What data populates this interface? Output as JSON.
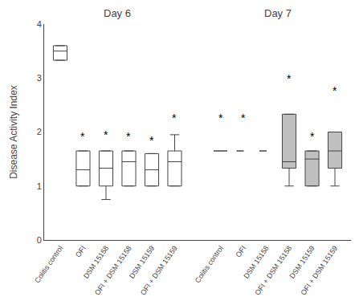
{
  "chart_data": {
    "type": "box",
    "ylabel": "Disease Activity Index",
    "ylim": [
      0,
      4
    ],
    "yticks": [
      0,
      1,
      2,
      3,
      4
    ],
    "grid": false,
    "color": "#444444",
    "group_titles": [
      "Day 6",
      "Day 7"
    ],
    "categories": [
      "Colitis control",
      "OFI",
      "DSM 15158",
      "OFI + DSM 15158",
      "DSM 15159",
      "OFI + DSM 15159",
      null,
      "Colitis control",
      "OFI",
      "DSM 15158",
      "OFI + DSM 15158",
      "DSM 15159",
      "OFI + DSM 15159"
    ],
    "boxes": [
      {
        "q1": 3.33,
        "median": 3.5,
        "q3": 3.6,
        "whislo": null,
        "whishi": null,
        "color": "white"
      },
      {
        "q1": 1.0,
        "median": 1.3,
        "q3": 1.65,
        "whislo": 1.0,
        "whishi": 1.65,
        "color": "white"
      },
      {
        "q1": 1.0,
        "median": 1.33,
        "q3": 1.65,
        "whislo": 0.75,
        "whishi": 1.65,
        "color": "white"
      },
      {
        "q1": 1.0,
        "median": 1.45,
        "q3": 1.65,
        "whislo": 1.0,
        "whishi": 1.65,
        "color": "white"
      },
      {
        "q1": 1.0,
        "median": 1.3,
        "q3": 1.6,
        "whislo": 1.0,
        "whishi": 1.6,
        "color": "white"
      },
      {
        "q1": 1.0,
        "median": 1.45,
        "q3": 1.65,
        "whislo": 1.0,
        "whishi": 1.95,
        "color": "white"
      },
      null,
      {
        "median": 1.65,
        "line_style": "solid"
      },
      {
        "median": 1.65,
        "line_style": "dashed"
      },
      {
        "median": 1.65,
        "line_style": "dashed"
      },
      {
        "q1": 1.33,
        "median": 1.45,
        "q3": 2.33,
        "whislo": 1.0,
        "whishi": 2.33,
        "color": "#c0c0c0"
      },
      {
        "q1": 1.0,
        "median": 1.5,
        "q3": 1.65,
        "whislo": 1.0,
        "whishi": 1.65,
        "color": "#c0c0c0"
      },
      {
        "q1": 1.33,
        "median": 1.65,
        "q3": 2.0,
        "whislo": 1.0,
        "whishi": 2.0,
        "color": "#c0c0c0"
      }
    ],
    "star_text": "*",
    "star_heights": [
      null,
      1.75,
      1.78,
      1.75,
      1.68,
      2.1,
      null,
      2.1,
      2.1,
      null,
      2.82,
      1.75,
      2.6
    ]
  }
}
